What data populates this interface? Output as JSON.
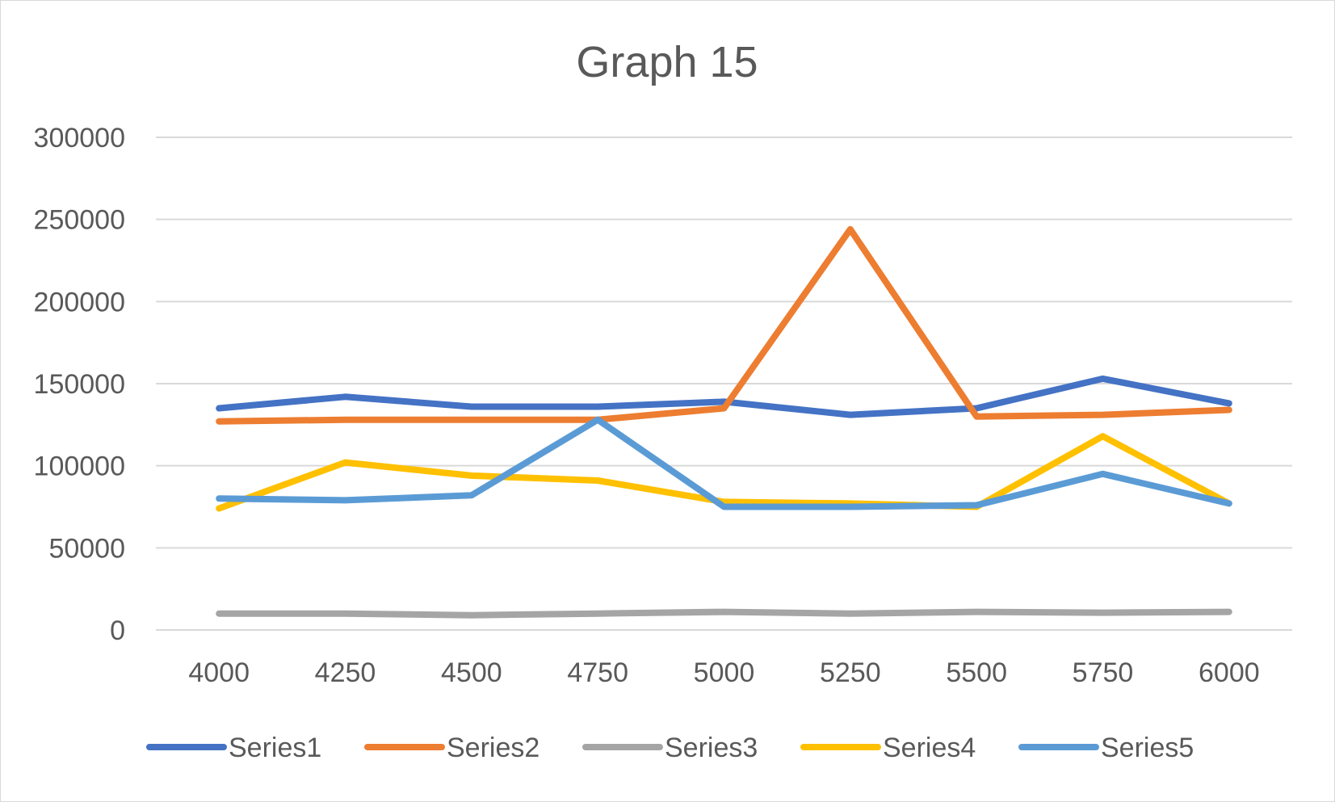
{
  "chart_data": {
    "type": "line",
    "title": "Graph 15",
    "xlabel": "",
    "ylabel": "",
    "categories": [
      "4000",
      "4250",
      "4500",
      "4750",
      "5000",
      "5250",
      "5500",
      "5750",
      "6000"
    ],
    "ylim": [
      0,
      300000
    ],
    "yticks": [
      "0",
      "50000",
      "100000",
      "150000",
      "200000",
      "250000",
      "300000"
    ],
    "grid": true,
    "legend_position": "bottom",
    "series": [
      {
        "name": "Series1",
        "color": "#4472C4",
        "values": [
          135000,
          142000,
          136000,
          136000,
          139000,
          131000,
          135000,
          153000,
          138000
        ]
      },
      {
        "name": "Series2",
        "color": "#ED7D31",
        "values": [
          127000,
          128000,
          128000,
          128000,
          135000,
          244000,
          130000,
          131000,
          134000
        ]
      },
      {
        "name": "Series3",
        "color": "#A5A5A5",
        "values": [
          10000,
          10000,
          9000,
          10000,
          11000,
          10000,
          11000,
          10500,
          11000
        ]
      },
      {
        "name": "Series4",
        "color": "#FFC000",
        "values": [
          74000,
          102000,
          94000,
          91000,
          78000,
          77000,
          75000,
          118000,
          77000
        ]
      },
      {
        "name": "Series5",
        "color": "#5B9BD5",
        "values": [
          80000,
          79000,
          82000,
          128000,
          75000,
          75000,
          76000,
          95000,
          77000
        ]
      }
    ]
  }
}
